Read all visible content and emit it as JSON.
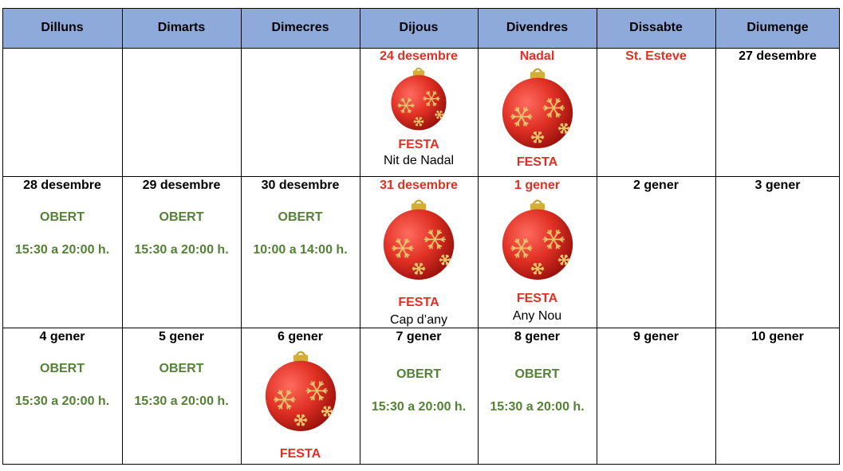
{
  "weekdays": [
    "Dilluns",
    "Dimarts",
    "Dimecres",
    "Dijous",
    "Divendres",
    "Dissabte",
    "Diumenge"
  ],
  "colors": {
    "header_bg": "#8eaadb",
    "holiday_red": "#e03024",
    "open_green": "#548235"
  },
  "rows": [
    {
      "cells": [
        {
          "date": ""
        },
        {
          "date": ""
        },
        {
          "date": ""
        },
        {
          "date": "24 desembre",
          "holiday": true,
          "icon": "christmas-ornament-icon",
          "festa": "FESTA",
          "note": "Nit de Nadal"
        },
        {
          "date": "Nadal",
          "holiday": true,
          "icon": "christmas-ornament-icon",
          "festa": "FESTA"
        },
        {
          "date": "St. Esteve",
          "holiday": true
        },
        {
          "date": "27 desembre"
        }
      ]
    },
    {
      "cells": [
        {
          "date": "28 desembre",
          "open": "OBERT",
          "hours": "15:30 a 20:00 h."
        },
        {
          "date": "29 desembre",
          "open": "OBERT",
          "hours": "15:30 a 20:00 h."
        },
        {
          "date": "30 desembre",
          "open": "OBERT",
          "hours": "10:00 a 14:00 h."
        },
        {
          "date": "31 desembre",
          "holiday": true,
          "icon": "christmas-ornament-icon",
          "festa": "FESTA",
          "note": "Cap d’any"
        },
        {
          "date": "1 gener",
          "holiday": true,
          "icon": "christmas-ornament-icon",
          "festa": "FESTA",
          "note": "Any Nou"
        },
        {
          "date": "2 gener"
        },
        {
          "date": "3 gener"
        }
      ]
    },
    {
      "cells": [
        {
          "date": "4 gener",
          "open": "OBERT",
          "hours": "15:30 a 20:00 h."
        },
        {
          "date": "5 gener",
          "open": "OBERT",
          "hours": "15:30 a 20:00 h."
        },
        {
          "date": "6 gener",
          "icon": "christmas-ornament-icon",
          "festa": "FESTA"
        },
        {
          "date": "7 gener",
          "open": "OBERT",
          "hours": "15:30 a 20:00 h."
        },
        {
          "date": "8 gener",
          "open": "OBERT",
          "hours": "15:30 a 20:00 h."
        },
        {
          "date": "9 gener"
        },
        {
          "date": "10 gener"
        }
      ]
    }
  ]
}
